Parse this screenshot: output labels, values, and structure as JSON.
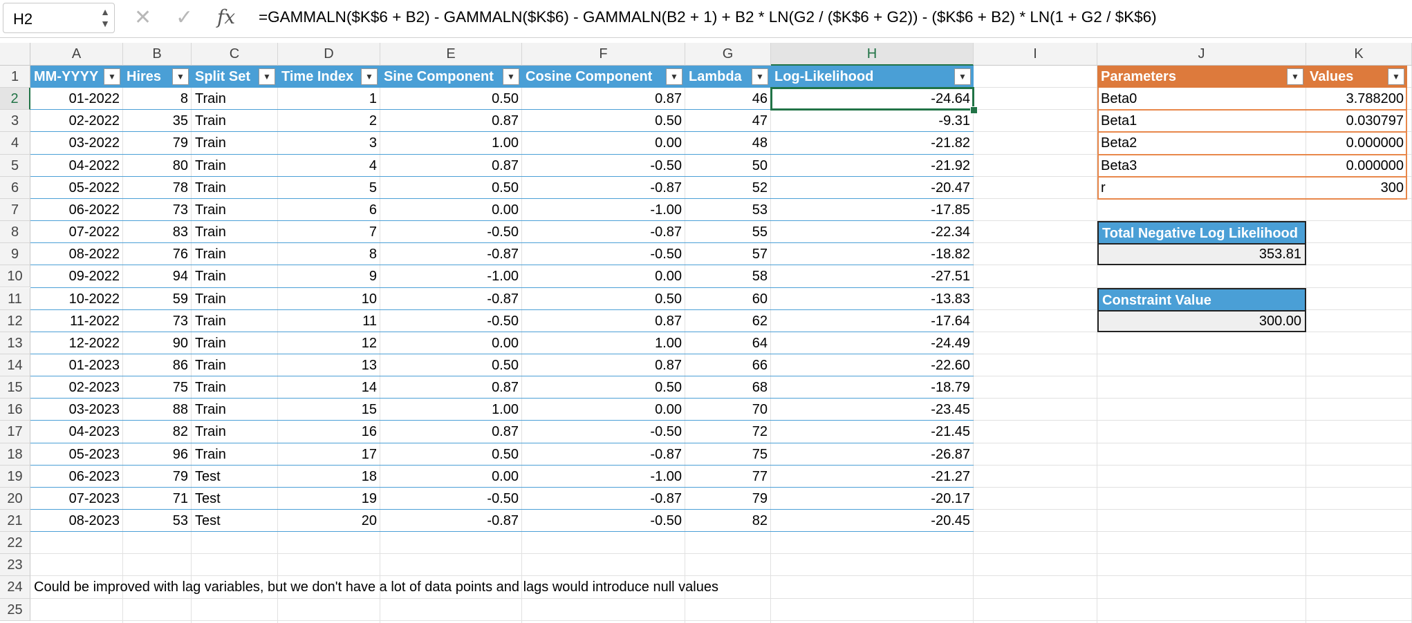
{
  "formula_bar": {
    "name_box": "H2",
    "cancel_icon": "close-icon",
    "enter_icon": "check-icon",
    "fx_label": "fx",
    "formula": "=GAMMALN($K$6 + B2) - GAMMALN($K$6) - GAMMALN(B2 + 1) + B2 * LN(G2 / ($K$6 + G2)) - ($K$6 + B2) * LN(1 + G2 / $K$6)"
  },
  "columns": [
    "A",
    "B",
    "C",
    "D",
    "E",
    "F",
    "G",
    "H",
    "I",
    "J",
    "K"
  ],
  "rows": [
    "1",
    "2",
    "3",
    "4",
    "5",
    "6",
    "7",
    "8",
    "9",
    "10",
    "11",
    "12",
    "13",
    "14",
    "15",
    "16",
    "17",
    "18",
    "19",
    "20",
    "21",
    "22",
    "23",
    "24",
    "25"
  ],
  "table": {
    "headers": [
      "MM-YYYY",
      "Hires",
      "Split Set",
      "Time Index",
      "Sine Component",
      "Cosine Component",
      "Lambda",
      "Log-Likelihood"
    ],
    "rows": [
      [
        "01-2022",
        "8",
        "Train",
        "1",
        "0.50",
        "0.87",
        "46",
        "-24.64"
      ],
      [
        "02-2022",
        "35",
        "Train",
        "2",
        "0.87",
        "0.50",
        "47",
        "-9.31"
      ],
      [
        "03-2022",
        "79",
        "Train",
        "3",
        "1.00",
        "0.00",
        "48",
        "-21.82"
      ],
      [
        "04-2022",
        "80",
        "Train",
        "4",
        "0.87",
        "-0.50",
        "50",
        "-21.92"
      ],
      [
        "05-2022",
        "78",
        "Train",
        "5",
        "0.50",
        "-0.87",
        "52",
        "-20.47"
      ],
      [
        "06-2022",
        "73",
        "Train",
        "6",
        "0.00",
        "-1.00",
        "53",
        "-17.85"
      ],
      [
        "07-2022",
        "83",
        "Train",
        "7",
        "-0.50",
        "-0.87",
        "55",
        "-22.34"
      ],
      [
        "08-2022",
        "76",
        "Train",
        "8",
        "-0.87",
        "-0.50",
        "57",
        "-18.82"
      ],
      [
        "09-2022",
        "94",
        "Train",
        "9",
        "-1.00",
        "0.00",
        "58",
        "-27.51"
      ],
      [
        "10-2022",
        "59",
        "Train",
        "10",
        "-0.87",
        "0.50",
        "60",
        "-13.83"
      ],
      [
        "11-2022",
        "73",
        "Train",
        "11",
        "-0.50",
        "0.87",
        "62",
        "-17.64"
      ],
      [
        "12-2022",
        "90",
        "Train",
        "12",
        "0.00",
        "1.00",
        "64",
        "-24.49"
      ],
      [
        "01-2023",
        "86",
        "Train",
        "13",
        "0.50",
        "0.87",
        "66",
        "-22.60"
      ],
      [
        "02-2023",
        "75",
        "Train",
        "14",
        "0.87",
        "0.50",
        "68",
        "-18.79"
      ],
      [
        "03-2023",
        "88",
        "Train",
        "15",
        "1.00",
        "0.00",
        "70",
        "-23.45"
      ],
      [
        "04-2023",
        "82",
        "Train",
        "16",
        "0.87",
        "-0.50",
        "72",
        "-21.45"
      ],
      [
        "05-2023",
        "96",
        "Train",
        "17",
        "0.50",
        "-0.87",
        "75",
        "-26.87"
      ],
      [
        "06-2023",
        "79",
        "Test",
        "18",
        "0.00",
        "-1.00",
        "77",
        "-21.27"
      ],
      [
        "07-2023",
        "71",
        "Test",
        "19",
        "-0.50",
        "-0.87",
        "79",
        "-20.17"
      ],
      [
        "08-2023",
        "53",
        "Test",
        "20",
        "-0.87",
        "-0.50",
        "82",
        "-20.45"
      ]
    ]
  },
  "params": {
    "headers": [
      "Parameters",
      "Values"
    ],
    "rows": [
      [
        "Beta0",
        "3.788200"
      ],
      [
        "Beta1",
        "0.030797"
      ],
      [
        "Beta2",
        "0.000000"
      ],
      [
        "Beta3",
        "0.000000"
      ],
      [
        "r",
        "300"
      ]
    ]
  },
  "nll": {
    "label": "Total Negative Log Likelihood",
    "value": "353.81"
  },
  "constraint": {
    "label": "Constraint Value",
    "value": "300.00"
  },
  "note": "Could be improved with lag variables, but we don't have a lot of data points and lags would introduce null values",
  "colors": {
    "table_header": "#4a9fd6",
    "params_header": "#dd7a3c",
    "selection": "#217346"
  }
}
